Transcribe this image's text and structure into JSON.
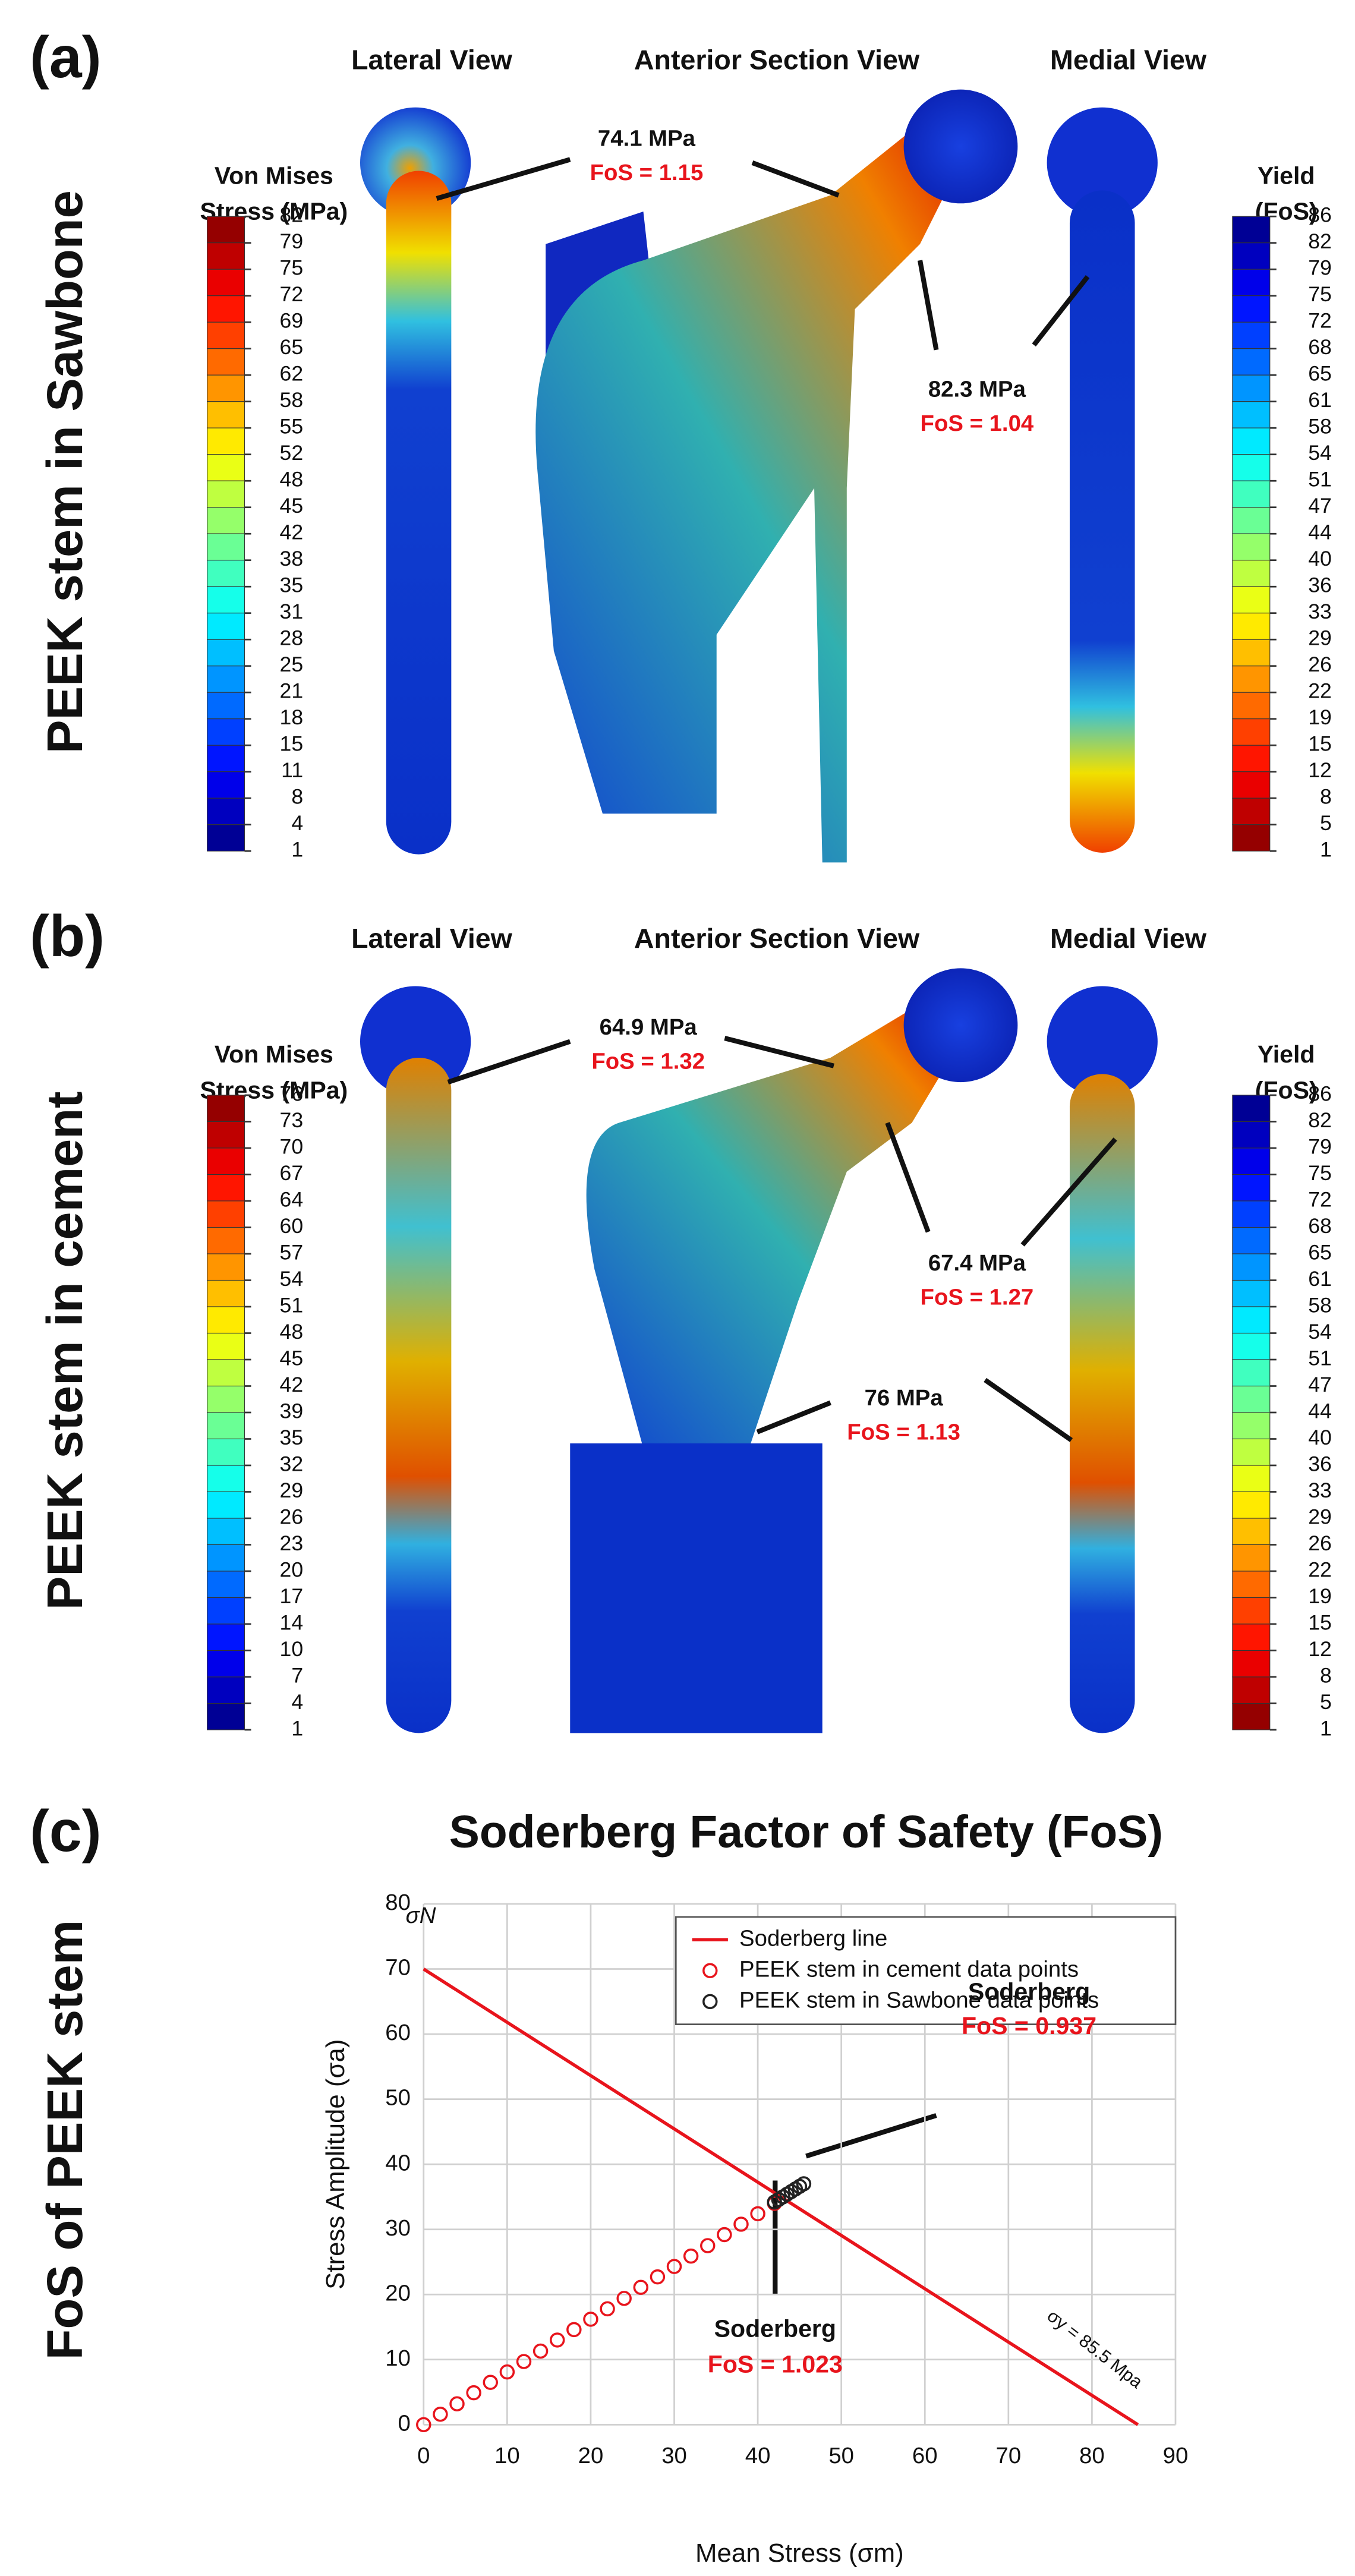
{
  "panels": [
    {
      "label": "(a)",
      "side_title": "PEEK stem in Sawbone",
      "views": [
        "Lateral View",
        "Anterior Section View",
        "Medial View"
      ],
      "stress_title": [
        "Von Mises",
        "Stress (MPa)"
      ],
      "stress_ticks": [
        82,
        79,
        75,
        72,
        69,
        65,
        62,
        58,
        55,
        52,
        48,
        45,
        42,
        38,
        35,
        31,
        28,
        25,
        21,
        18,
        15,
        11,
        8,
        4,
        1
      ],
      "fos_title": [
        "Yield",
        "(FoS)"
      ],
      "fos_ticks": [
        86,
        82,
        79,
        75,
        72,
        68,
        65,
        61,
        58,
        54,
        51,
        47,
        44,
        40,
        36,
        33,
        29,
        26,
        22,
        19,
        15,
        12,
        8,
        5,
        1
      ],
      "annotations": [
        {
          "stress": "74.1 MPa",
          "fos": "FoS = 1.15"
        },
        {
          "stress": "82.3 MPa",
          "fos": "FoS = 1.04"
        }
      ]
    },
    {
      "label": "(b)",
      "side_title": "PEEK stem in cement",
      "views": [
        "Lateral View",
        "Anterior Section View",
        "Medial View"
      ],
      "stress_title": [
        "Von Mises",
        "Stress (MPa)"
      ],
      "stress_ticks": [
        76,
        73,
        70,
        67,
        64,
        60,
        57,
        54,
        51,
        48,
        45,
        42,
        39,
        35,
        32,
        29,
        26,
        23,
        20,
        17,
        14,
        10,
        7,
        4,
        1
      ],
      "fos_title": [
        "Yield",
        "(FoS)"
      ],
      "fos_ticks": [
        86,
        82,
        79,
        75,
        72,
        68,
        65,
        61,
        58,
        54,
        51,
        47,
        44,
        40,
        36,
        33,
        29,
        26,
        22,
        19,
        15,
        12,
        8,
        5,
        1
      ],
      "annotations": [
        {
          "stress": "64.9 MPa",
          "fos": "FoS = 1.32"
        },
        {
          "stress": "67.4 MPa",
          "fos": "FoS = 1.27"
        },
        {
          "stress": "76 MPa",
          "fos": "FoS = 1.13"
        }
      ]
    }
  ],
  "chart_data": {
    "type": "scatter",
    "label": "(c)",
    "side_title": "FoS of PEEK stem",
    "title": "Soderberg Factor of Safety (FoS)",
    "x_label": "Mean Stress (σm)",
    "y_label": "Stress Amplitude (σa)",
    "xlim": [
      0,
      90
    ],
    "xticks": [
      0,
      10,
      20,
      30,
      40,
      50,
      60,
      70,
      80,
      90
    ],
    "ylim": [
      0,
      80
    ],
    "yticks": [
      0,
      10,
      20,
      30,
      40,
      50,
      60,
      70,
      80
    ],
    "grid": true,
    "legend": "upper right",
    "series": [
      {
        "name": "Soderberg line",
        "type": "line",
        "color": "#e8141c",
        "x": [
          0,
          85.5
        ],
        "values": [
          70,
          0
        ]
      },
      {
        "name": "PEEK stem in cement data points",
        "type": "scatter",
        "color": "#e8141c",
        "x": [
          0,
          2,
          4,
          6,
          8,
          10,
          12,
          14,
          16,
          18,
          20,
          22,
          24,
          26,
          28,
          30,
          32,
          34,
          36,
          38,
          40,
          42
        ],
        "values": [
          0,
          1.6,
          3.2,
          4.9,
          6.5,
          8.1,
          9.7,
          11.3,
          13.0,
          14.6,
          16.2,
          17.8,
          19.4,
          21.1,
          22.7,
          24.3,
          25.9,
          27.5,
          29.2,
          30.8,
          32.4,
          34.0
        ]
      },
      {
        "name": "PEEK stem in Sawbone data points",
        "type": "scatter",
        "color": "#222222",
        "x": [
          42,
          42.5,
          43,
          43.5,
          44,
          44.5,
          45,
          45.5
        ],
        "values": [
          34.2,
          34.6,
          35.0,
          35.4,
          35.8,
          36.2,
          36.6,
          37.0
        ]
      }
    ],
    "annotations": [
      {
        "text": "σN"
      },
      {
        "text": "σy = 85.5 Mpa"
      },
      {
        "text": "Soderberg",
        "fos": "FoS = 0.937"
      },
      {
        "text": "Soderberg",
        "fos": "FoS = 1.023"
      }
    ]
  }
}
